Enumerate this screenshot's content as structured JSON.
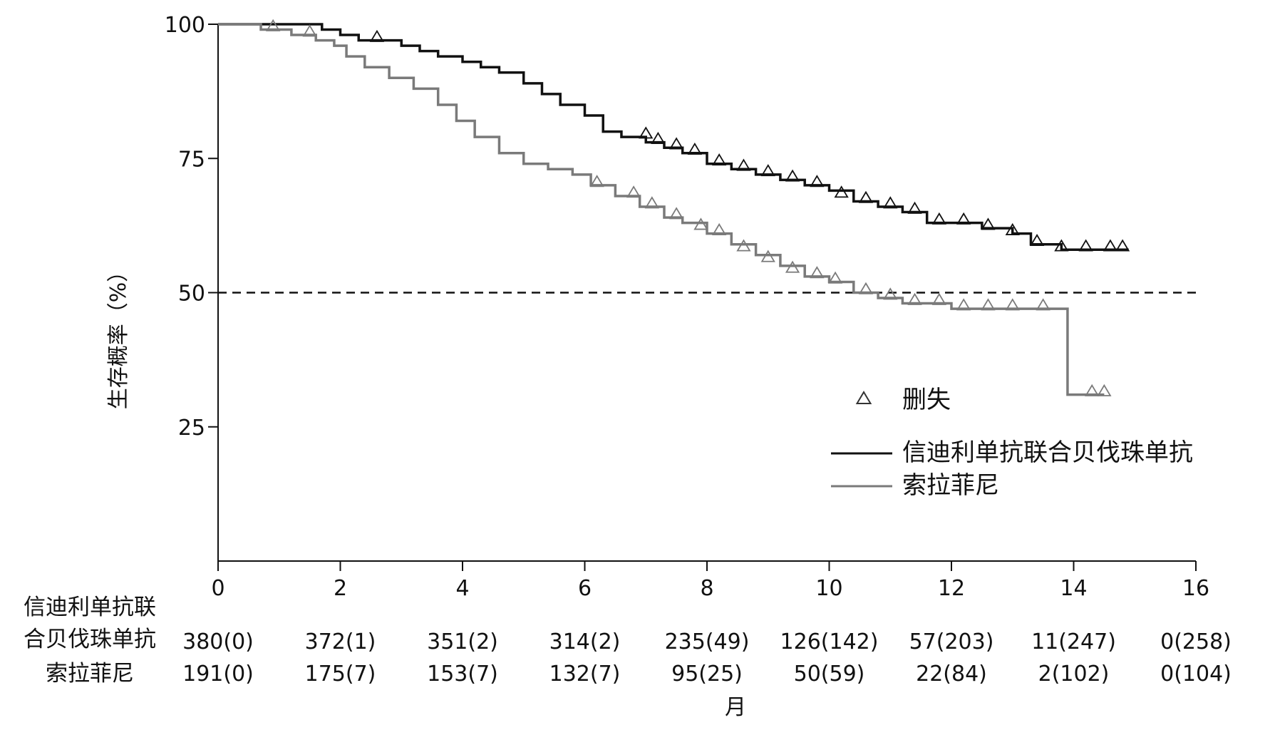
{
  "chart_data": {
    "type": "line",
    "title": "",
    "xlabel": "月",
    "ylabel": "生存概率（%）",
    "xlim": [
      0,
      16
    ],
    "ylim": [
      0,
      100
    ],
    "x_ticks": [
      "0",
      "2",
      "4",
      "6",
      "8",
      "10",
      "12",
      "14",
      "16"
    ],
    "y_ticks": [
      "100",
      "75",
      "50",
      "25"
    ],
    "reference_line": {
      "y": 50,
      "style": "dashed"
    },
    "legend": {
      "placement": "right",
      "censor_label": "删失",
      "entries": [
        "信迪利单抗联合贝伐珠单抗",
        "索拉菲尼"
      ]
    },
    "colors": {
      "series1": "#111111",
      "series2": "#7a7a7a",
      "reference": "#111111"
    },
    "series": [
      {
        "name": "信迪利单抗联合贝伐珠单抗",
        "x": [
          0,
          0.5,
          1.2,
          1.7,
          2.0,
          2.3,
          2.7,
          3.0,
          3.3,
          3.6,
          4.0,
          4.3,
          4.6,
          5.0,
          5.3,
          5.6,
          6.0,
          6.3,
          6.6,
          7.0,
          7.3,
          7.6,
          8.0,
          8.4,
          8.8,
          9.2,
          9.6,
          10.0,
          10.4,
          10.8,
          11.2,
          11.6,
          12.0,
          12.5,
          13.0,
          13.3,
          13.8,
          14.4,
          14.9
        ],
        "y": [
          100,
          100,
          100,
          99,
          98,
          97,
          97,
          96,
          95,
          94,
          93,
          92,
          91,
          89,
          87,
          85,
          83,
          80,
          79,
          78,
          77,
          76,
          74,
          73,
          72,
          71,
          70,
          69,
          67,
          66,
          65,
          63,
          63,
          62,
          61,
          59,
          58,
          58,
          58
        ],
        "censored_x": [
          2.6,
          7.0,
          7.2,
          7.5,
          7.8,
          8.2,
          8.6,
          9.0,
          9.4,
          9.8,
          10.2,
          10.6,
          11.0,
          11.4,
          11.8,
          12.2,
          12.6,
          13.0,
          13.4,
          13.8,
          14.2,
          14.6,
          14.8
        ],
        "censored_y": [
          97,
          79,
          78,
          77,
          76,
          74,
          73,
          72,
          71,
          70,
          68,
          67,
          66,
          65,
          63,
          63,
          62,
          61,
          59,
          58,
          58,
          58,
          58
        ]
      },
      {
        "name": "索拉菲尼",
        "x": [
          0,
          0.7,
          1.2,
          1.6,
          1.9,
          2.1,
          2.4,
          2.8,
          3.2,
          3.6,
          3.9,
          4.2,
          4.6,
          5.0,
          5.4,
          5.8,
          6.1,
          6.5,
          6.9,
          7.3,
          7.6,
          8.0,
          8.4,
          8.8,
          9.2,
          9.6,
          10.0,
          10.4,
          10.8,
          11.2,
          11.6,
          12.0,
          12.4,
          13.0,
          13.6,
          13.9,
          14.3,
          14.5
        ],
        "y": [
          100,
          99,
          98,
          97,
          96,
          94,
          92,
          90,
          88,
          85,
          82,
          79,
          76,
          74,
          73,
          72,
          70,
          68,
          66,
          64,
          63,
          61,
          59,
          57,
          55,
          53,
          52,
          50,
          49,
          48,
          48,
          47,
          47,
          47,
          47,
          31,
          31,
          31
        ],
        "censored_x": [
          0.9,
          1.5,
          6.2,
          6.8,
          7.1,
          7.5,
          7.9,
          8.2,
          8.6,
          9.0,
          9.4,
          9.8,
          10.1,
          10.6,
          11.0,
          11.4,
          11.8,
          12.2,
          12.6,
          13.0,
          13.5,
          14.3,
          14.5
        ],
        "censored_y": [
          99,
          98,
          70,
          68,
          66,
          64,
          62,
          61,
          58,
          56,
          54,
          53,
          52,
          50,
          49,
          48,
          48,
          47,
          47,
          47,
          47,
          31,
          31
        ]
      }
    ],
    "risk_table": {
      "rows": [
        {
          "label_lines": [
            "信迪利单抗联",
            "合贝伐珠单抗"
          ],
          "values": [
            "380(0)",
            "372(1)",
            "351(2)",
            "314(2)",
            "235(49)",
            "126(142)",
            "57(203)",
            "11(247)",
            "0(258)"
          ]
        },
        {
          "label_lines": [
            "索拉菲尼"
          ],
          "values": [
            "191(0)",
            "175(7)",
            "153(7)",
            "132(7)",
            "95(25)",
            "50(59)",
            "22(84)",
            "2(102)",
            "0(104)"
          ]
        }
      ]
    }
  }
}
